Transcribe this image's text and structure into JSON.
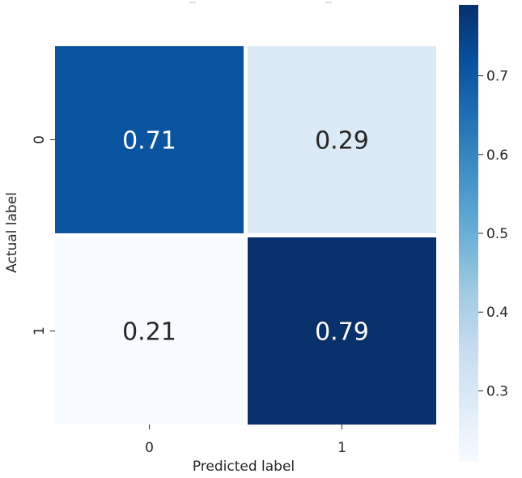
{
  "chart_data": {
    "type": "heatmap",
    "title": "",
    "xlabel": "Predicted label",
    "ylabel": "Actual label",
    "x_categories": [
      "0",
      "1"
    ],
    "y_categories": [
      "0",
      "1"
    ],
    "values": [
      [
        0.71,
        0.29
      ],
      [
        0.21,
        0.79
      ]
    ],
    "value_labels": [
      [
        "0.71",
        "0.29"
      ],
      [
        "0.21",
        "0.79"
      ]
    ],
    "colormap": "Blues",
    "color_range": [
      0.21,
      0.79
    ],
    "colorbar_ticks": [
      "0.3",
      "0.4",
      "0.5",
      "0.6",
      "0.7"
    ],
    "colorbar_tick_values": [
      0.3,
      0.4,
      0.5,
      0.6,
      0.7
    ]
  }
}
